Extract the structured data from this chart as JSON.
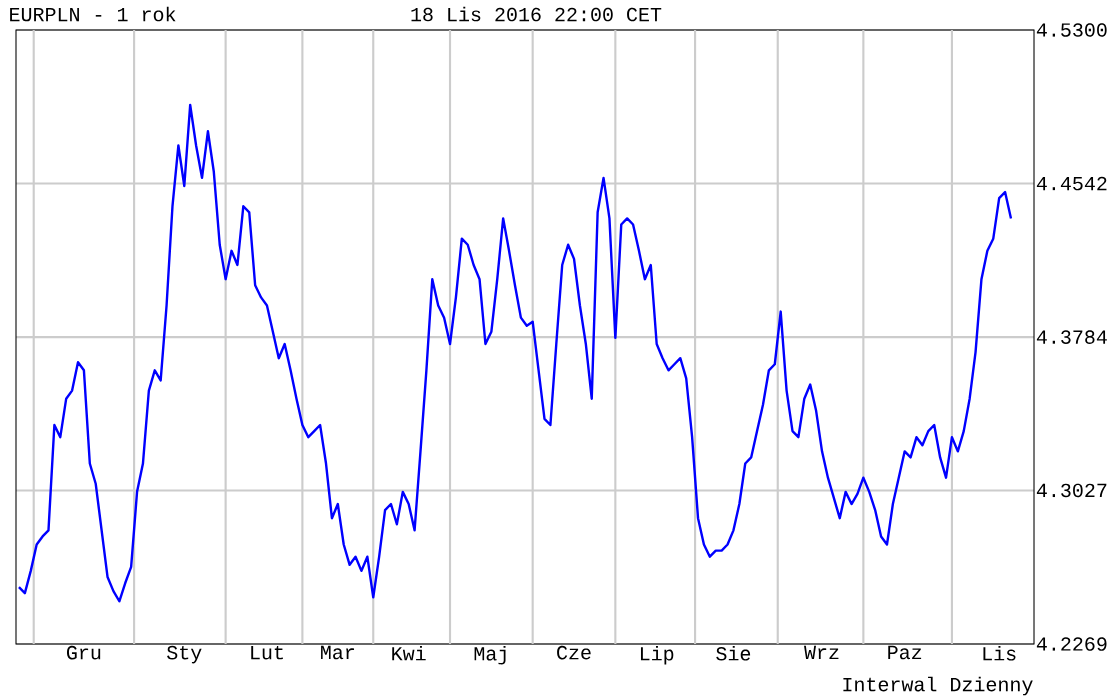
{
  "chart_data": {
    "type": "line",
    "title": "EURPLN - 1 rok",
    "subtitle": "18 Lis 2016 22:00 CET",
    "annotations": [
      "Interwal Dzienny"
    ],
    "categories": [
      null,
      null,
      null,
      null,
      null,
      null,
      null,
      null,
      null,
      null,
      null,
      "Gru",
      null,
      null,
      null,
      null,
      null,
      null,
      null,
      null,
      null,
      null,
      null,
      null,
      null,
      null,
      null,
      null,
      "Sty",
      null,
      null,
      null,
      null,
      null,
      null,
      null,
      null,
      null,
      null,
      null,
      null,
      null,
      "Lut",
      null,
      null,
      null,
      null,
      null,
      null,
      null,
      null,
      null,
      null,
      null,
      "Mar",
      null,
      null,
      null,
      null,
      null,
      null,
      null,
      null,
      null,
      null,
      null,
      "Kwi",
      null,
      null,
      null,
      null,
      null,
      null,
      null,
      null,
      null,
      null,
      null,
      null,
      null,
      "Maj",
      null,
      null,
      null,
      null,
      null,
      null,
      null,
      null,
      null,
      null,
      null,
      null,
      null,
      "Cze",
      null,
      null,
      null,
      null,
      null,
      null,
      null,
      null,
      null,
      null,
      null,
      null,
      null,
      "Lip",
      null,
      null,
      null,
      null,
      null,
      null,
      null,
      null,
      null,
      null,
      null,
      null,
      "Sie",
      null,
      null,
      null,
      null,
      null,
      null,
      null,
      null,
      null,
      null,
      null,
      null,
      null,
      null,
      "Wrz",
      null,
      null,
      null,
      null,
      null,
      null,
      null,
      null,
      null,
      null,
      null,
      null,
      null,
      "Paz",
      null,
      null,
      null,
      null,
      null,
      null,
      null,
      null,
      null,
      null,
      null,
      null,
      null,
      null,
      null,
      "Lis",
      null,
      null
    ],
    "ylim": [
      4.2269,
      4.53
    ],
    "yticks": [
      {
        "value": 4.2269,
        "label": "4.2269"
      },
      {
        "value": 4.3027,
        "label": "4.3027"
      },
      {
        "value": 4.3784,
        "label": "4.3784"
      },
      {
        "value": 4.4542,
        "label": "4.4542"
      },
      {
        "value": 4.53,
        "label": "4.5300"
      }
    ],
    "grid": true,
    "marker": "none",
    "line_style": "solid",
    "series": [
      {
        "color": "#0000ff",
        "values": [
          4.255,
          4.252,
          4.263,
          4.276,
          4.28,
          4.283,
          4.335,
          4.329,
          4.348,
          4.352,
          4.366,
          4.362,
          4.316,
          4.306,
          4.283,
          4.26,
          4.253,
          4.248,
          4.257,
          4.265,
          4.302,
          4.316,
          4.352,
          4.362,
          4.357,
          4.394,
          4.443,
          4.473,
          4.453,
          4.493,
          4.473,
          4.457,
          4.48,
          4.46,
          4.424,
          4.407,
          4.421,
          4.414,
          4.443,
          4.44,
          4.404,
          4.398,
          4.394,
          4.381,
          4.368,
          4.375,
          4.362,
          4.348,
          4.335,
          4.329,
          4.332,
          4.335,
          4.316,
          4.289,
          4.296,
          4.276,
          4.266,
          4.27,
          4.263,
          4.27,
          4.25,
          4.27,
          4.293,
          4.296,
          4.286,
          4.302,
          4.296,
          4.283,
          4.322,
          4.362,
          4.407,
          4.394,
          4.388,
          4.375,
          4.398,
          4.427,
          4.424,
          4.414,
          4.407,
          4.375,
          4.381,
          4.407,
          4.437,
          4.421,
          4.404,
          4.388,
          4.384,
          4.386,
          4.362,
          4.338,
          4.335,
          4.375,
          4.414,
          4.424,
          4.417,
          4.394,
          4.375,
          4.348,
          4.44,
          4.457,
          4.437,
          4.378,
          4.434,
          4.437,
          4.434,
          4.421,
          4.407,
          4.414,
          4.375,
          4.368,
          4.362,
          4.365,
          4.368,
          4.358,
          4.329,
          4.289,
          4.276,
          4.27,
          4.273,
          4.273,
          4.276,
          4.283,
          4.296,
          4.316,
          4.319,
          4.332,
          4.345,
          4.362,
          4.365,
          4.391,
          4.352,
          4.332,
          4.329,
          4.348,
          4.355,
          4.342,
          4.322,
          4.309,
          4.299,
          4.289,
          4.302,
          4.296,
          4.301,
          4.309,
          4.302,
          4.293,
          4.28,
          4.276,
          4.296,
          4.309,
          4.322,
          4.319,
          4.329,
          4.325,
          4.332,
          4.335,
          4.319,
          4.309,
          4.329,
          4.322,
          4.332,
          4.348,
          4.371,
          4.407,
          4.421,
          4.427,
          4.447,
          4.45,
          4.437
        ]
      }
    ]
  }
}
